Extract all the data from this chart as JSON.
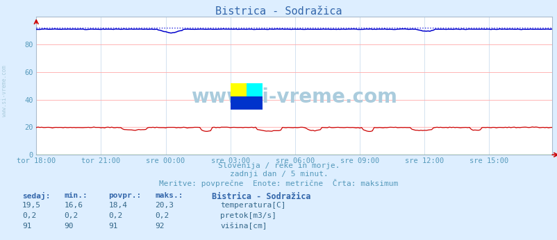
{
  "title": "Bistrica - Sodražica",
  "bg_color": "#ddeeff",
  "plot_bg_color": "#ffffff",
  "grid_color": "#ffaaaa",
  "vgrid_color": "#ccddee",
  "xlabel_color": "#5599bb",
  "ylabel_color": "#5599bb",
  "title_color": "#3366aa",
  "subtitle_lines": [
    "Slovenija / reke in morje.",
    "zadnji dan / 5 minut.",
    "Meritve: povprečne  Enote: metrične  Črta: maksimum"
  ],
  "watermark": "www.si-vreme.com",
  "watermark_color": "#aaccdd",
  "xticklabels": [
    "tor 18:00",
    "tor 21:00",
    "sre 00:00",
    "sre 03:00",
    "sre 06:00",
    "sre 09:00",
    "sre 12:00",
    "sre 15:00"
  ],
  "xtick_positions": [
    0,
    36,
    72,
    108,
    144,
    180,
    216,
    252
  ],
  "ylim": [
    0,
    100
  ],
  "yticks": [
    0,
    20,
    40,
    60,
    80
  ],
  "n_points": 288,
  "temp_color": "#cc0000",
  "flow_color": "#008800",
  "height_color": "#0000cc",
  "height_dot_color": "#2222dd",
  "legend_items": [
    {
      "label": "temperatura[C]",
      "color": "#cc0000"
    },
    {
      "label": "pretok[m3/s]",
      "color": "#008800"
    },
    {
      "label": "višina[cm]",
      "color": "#0000cc"
    }
  ],
  "table_headers": [
    "sedaj:",
    "min.:",
    "povpr.:",
    "maks.:"
  ],
  "table_rows": [
    [
      "19,5",
      "16,6",
      "18,4",
      "20,3"
    ],
    [
      "0,2",
      "0,2",
      "0,2",
      "0,2"
    ],
    [
      "91",
      "90",
      "91",
      "92"
    ]
  ],
  "station_label": "Bistrica - Sodražica",
  "left_label": "www.si-vreme.com"
}
